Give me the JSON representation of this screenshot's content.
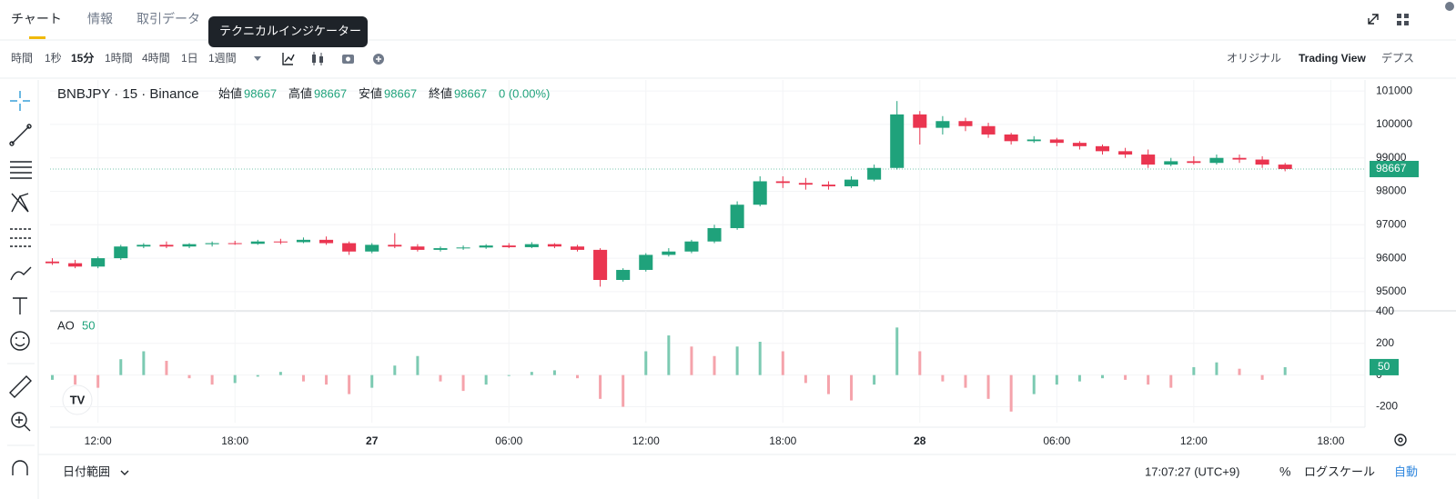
{
  "tabs": [
    "チャート",
    "情報",
    "取引データ"
  ],
  "tooltip": "テクニカルインジケーター",
  "intervals": [
    "時間",
    "1秒",
    "15分",
    "1時間",
    "4時間",
    "1日",
    "1週間"
  ],
  "views": [
    "オリジナル",
    "Trading View",
    "デプス"
  ],
  "footer": {
    "range": "日付範囲",
    "clock": "17:07:27 (UTC+9)",
    "percent": "%",
    "log": "ログスケール",
    "auto": "自動"
  },
  "chart_data": [
    {
      "type": "candlestick",
      "legend": {
        "symbol": "BNBJPY · 15 · Binance",
        "fields": [
          {
            "label": "始値",
            "value": 98667
          },
          {
            "label": "高値",
            "value": 98667
          },
          {
            "label": "安値",
            "value": 98667
          },
          {
            "label": "終値",
            "value": 98667
          }
        ],
        "change": "0 (0.00%)"
      },
      "up_color": "#1fa27b",
      "down_color": "#ea3550",
      "x": [
        -2,
        -1,
        0,
        1,
        2,
        3,
        4,
        5,
        6,
        7,
        8,
        9,
        10,
        11,
        12,
        13,
        14,
        15,
        16,
        17,
        18,
        19,
        20,
        21,
        22,
        23,
        24,
        25,
        26,
        27,
        28,
        29,
        30,
        31,
        32,
        33,
        34,
        35,
        36,
        37,
        38,
        39,
        40,
        41,
        42,
        43,
        44,
        45,
        46,
        47,
        48,
        49,
        50,
        51,
        52
      ],
      "open": [
        95900,
        95850,
        95750,
        96000,
        96350,
        96400,
        96350,
        96420,
        96450,
        96430,
        96500,
        96480,
        96550,
        96450,
        96200,
        96400,
        96350,
        96250,
        96300,
        96320,
        96380,
        96330,
        96420,
        96350,
        96250,
        95350,
        95650,
        96100,
        96200,
        96500,
        96900,
        97600,
        98300,
        98250,
        98200,
        98150,
        98350,
        98700,
        100300,
        99900,
        100100,
        99950,
        99700,
        99500,
        99550,
        99450,
        99350,
        99200,
        99100,
        98800,
        98900,
        98850,
        99000,
        98950,
        98800
      ],
      "high": [
        96000,
        95950,
        96050,
        96400,
        96450,
        96500,
        96450,
        96500,
        96520,
        96550,
        96580,
        96620,
        96650,
        96500,
        96450,
        96750,
        96420,
        96350,
        96380,
        96420,
        96450,
        96480,
        96450,
        96400,
        96300,
        95700,
        96150,
        96300,
        96550,
        97000,
        97700,
        98450,
        98450,
        98400,
        98300,
        98450,
        98800,
        100700,
        100400,
        100250,
        100200,
        100050,
        99750,
        99650,
        99600,
        99500,
        99400,
        99300,
        99250,
        99000,
        99050,
        99100,
        99100,
        99050,
        98850
      ],
      "low": [
        95800,
        95700,
        95700,
        95950,
        96300,
        96300,
        96300,
        96350,
        96400,
        96400,
        96420,
        96450,
        96400,
        96100,
        96150,
        96300,
        96200,
        96200,
        96250,
        96280,
        96300,
        96300,
        96300,
        96200,
        95150,
        95300,
        95600,
        96050,
        96150,
        96450,
        96850,
        97550,
        98100,
        98050,
        98050,
        98100,
        98300,
        98650,
        99400,
        99700,
        99800,
        99600,
        99400,
        99450,
        99350,
        99250,
        99100,
        99000,
        98700,
        98750,
        98800,
        98800,
        98850,
        98700,
        98600
      ],
      "close": [
        95850,
        95750,
        96000,
        96350,
        96400,
        96350,
        96420,
        96450,
        96430,
        96500,
        96480,
        96550,
        96450,
        96200,
        96400,
        96350,
        96250,
        96300,
        96320,
        96380,
        96330,
        96420,
        96350,
        96250,
        95350,
        95650,
        96100,
        96200,
        96500,
        96900,
        97600,
        98300,
        98250,
        98200,
        98150,
        98350,
        98700,
        100300,
        99900,
        100100,
        99950,
        99700,
        99500,
        99550,
        99450,
        99350,
        99200,
        99100,
        98800,
        98900,
        98850,
        99000,
        98950,
        98800,
        98667
      ],
      "ylim": [
        94480,
        101330
      ],
      "yticks": [
        95000,
        96000,
        97000,
        98000,
        99000,
        100000,
        101000
      ],
      "xlim": [
        -2.1,
        55.5
      ],
      "xticks": [
        {
          "value": 0,
          "label": "12:00"
        },
        {
          "value": 6,
          "label": "18:00"
        },
        {
          "value": 12,
          "label": "27"
        },
        {
          "value": 18,
          "label": "06:00"
        },
        {
          "value": 24,
          "label": "12:00"
        },
        {
          "value": 30,
          "label": "18:00"
        },
        {
          "value": 36,
          "label": "28"
        },
        {
          "value": 42,
          "label": "06:00"
        },
        {
          "value": 48,
          "label": "12:00"
        },
        {
          "value": 54,
          "label": "18:00"
        }
      ],
      "grid": true
    },
    {
      "type": "bar",
      "title": "AO",
      "up_color": "#7ccab2",
      "down_color": "#f5a3ab",
      "x": [
        -2,
        -1,
        0,
        1,
        2,
        3,
        4,
        5,
        6,
        7,
        8,
        9,
        10,
        11,
        12,
        13,
        14,
        15,
        16,
        17,
        18,
        19,
        20,
        21,
        22,
        23,
        24,
        25,
        26,
        27,
        28,
        29,
        30,
        31,
        32,
        33,
        34,
        35,
        36,
        37,
        38,
        39,
        40,
        41,
        42,
        43,
        44,
        45,
        46,
        47,
        48,
        49,
        50,
        51,
        52
      ],
      "values": [
        -30,
        -60,
        -80,
        100,
        150,
        90,
        -20,
        -60,
        -50,
        -10,
        20,
        -40,
        -60,
        -120,
        -80,
        60,
        120,
        -40,
        -100,
        -60,
        0,
        20,
        30,
        -20,
        -150,
        -200,
        150,
        250,
        180,
        120,
        180,
        210,
        150,
        -50,
        -120,
        -160,
        -60,
        300,
        150,
        -40,
        -80,
        -150,
        -230,
        -120,
        -60,
        -40,
        -20,
        -30,
        -60,
        -80,
        50,
        80,
        40,
        -30,
        50
      ],
      "ylim": [
        -300,
        405
      ],
      "yticks": [
        -200,
        0,
        200,
        400
      ],
      "xlim": [
        -2.1,
        55.5
      ],
      "grid": true
    }
  ]
}
